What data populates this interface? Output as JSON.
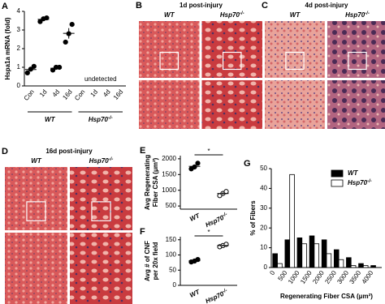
{
  "histology": [
    {
      "panel": "B",
      "title": "1d post-injury",
      "columns": [
        {
          "base": "WT"
        },
        {
          "base": "Hsp70",
          "sup": "-/-"
        }
      ]
    },
    {
      "panel": "C",
      "title": "4d post-injury",
      "columns": [
        {
          "base": "WT"
        },
        {
          "base": "Hsp70",
          "sup": "-/-"
        }
      ]
    },
    {
      "panel": "D",
      "title": "16d post-injury",
      "columns": [
        {
          "base": "WT"
        },
        {
          "base": "Hsp70",
          "sup": "-/-"
        }
      ]
    }
  ],
  "chart_data": [
    {
      "type": "dot",
      "panel": "A",
      "y_label": "Hspa1a mRNA (fold)",
      "ylim": [
        0,
        4
      ],
      "yticks": [
        0,
        1,
        2,
        3,
        4
      ],
      "categories": [
        "Con",
        "1d",
        "4d",
        "16d",
        "Con",
        "1d",
        "4d",
        "16d"
      ],
      "groups": [
        {
          "base": "WT"
        },
        {
          "base": "Hsp70",
          "sup": "-/-"
        }
      ],
      "points": [
        [
          0.7,
          0.9,
          1.05
        ],
        [
          3.45,
          3.6,
          3.65
        ],
        [
          0.85,
          1.0,
          1.0
        ],
        [
          2.35,
          2.8,
          3.3
        ],
        null,
        null,
        null,
        null
      ],
      "means": [
        0.88,
        3.57,
        0.95,
        2.82,
        null,
        null,
        null,
        null
      ],
      "errors": [
        0.1,
        0.06,
        0.05,
        0.28,
        null,
        null,
        null,
        null
      ],
      "annotation": "undetected",
      "color": "#000000"
    },
    {
      "type": "dot",
      "panel": "E",
      "y_label": [
        "Avg Regenerating",
        "Fiber CSA (μm²)"
      ],
      "ylim": [
        400,
        2100
      ],
      "yticks": [
        500,
        1000,
        1500,
        2000
      ],
      "categories": [
        {
          "base": "WT"
        },
        {
          "base": "Hsp70",
          "sup": "-/-"
        }
      ],
      "points": [
        [
          1680,
          1740,
          1860
        ],
        [
          830,
          900,
          960
        ]
      ],
      "means": [
        1760,
        897
      ],
      "errors": [
        53,
        38
      ],
      "significance": "*",
      "color": "#000000",
      "open": [
        false,
        true
      ]
    },
    {
      "type": "dot",
      "panel": "F",
      "y_label": [
        "Avg # of CNF",
        "per 20x field"
      ],
      "ylim": [
        0,
        160
      ],
      "yticks": [
        0,
        50,
        100,
        150
      ],
      "categories": [
        {
          "base": "WT"
        },
        {
          "base": "Hsp70",
          "sup": "-/-"
        }
      ],
      "points": [
        [
          77,
          80,
          85
        ],
        [
          127,
          131,
          135
        ]
      ],
      "means": [
        81,
        131
      ],
      "errors": [
        2.5,
        2.5
      ],
      "significance": "*",
      "color": "#000000",
      "open": [
        false,
        true
      ]
    },
    {
      "type": "bar",
      "panel": "G",
      "y_label": "% of Fibers",
      "x_label": "Regenerating Fiber CSA (μm²)",
      "ylim": [
        0,
        50
      ],
      "yticks": [
        0,
        10,
        20,
        30,
        40,
        50
      ],
      "categories": [
        "0",
        "500",
        "1000",
        "1500",
        "2000",
        "2500",
        "3000",
        "3500",
        "4000"
      ],
      "series": [
        {
          "name": {
            "base": "WT"
          },
          "color": "#000000",
          "values": [
            7,
            14,
            15,
            16,
            14,
            9,
            5,
            2,
            1
          ]
        },
        {
          "name": {
            "base": "Hsp70",
            "sup": "-/-"
          },
          "color": "#ffffff",
          "values": [
            2,
            47,
            12,
            12,
            7,
            4,
            1,
            1,
            0
          ]
        }
      ],
      "legend": "top-right"
    }
  ]
}
